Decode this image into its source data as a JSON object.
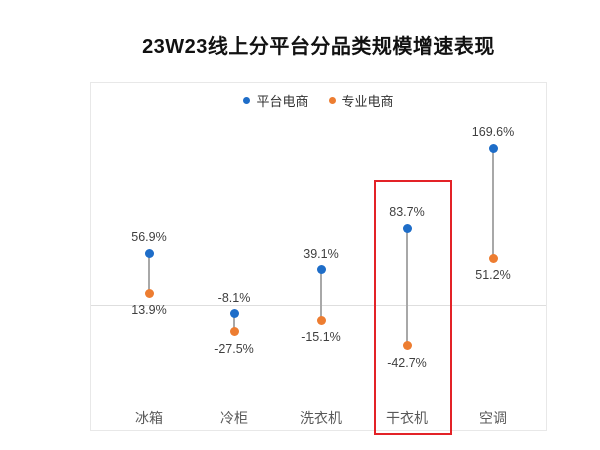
{
  "title": "23W23线上分平台分品类规模增速表现",
  "legend": {
    "items": [
      {
        "label": "平台电商",
        "color": "#1e6dc8"
      },
      {
        "label": "专业电商",
        "color": "#ed7d31"
      }
    ]
  },
  "chart_data": {
    "type": "scatter",
    "subtype": "dumbbell-dot-plot",
    "title": "23W23线上分平台分品类规模增速表现",
    "categories": [
      "冰箱",
      "冷柜",
      "洗衣机",
      "干衣机",
      "空调"
    ],
    "series": [
      {
        "name": "平台电商",
        "color": "#1e6dc8",
        "values": [
          56.9,
          -8.1,
          39.1,
          83.7,
          169.6
        ],
        "labels": [
          "56.9%",
          "-8.1%",
          "39.1%",
          "83.7%",
          "169.6%"
        ]
      },
      {
        "name": "专业电商",
        "color": "#ed7d31",
        "values": [
          13.9,
          -27.5,
          -15.1,
          -42.7,
          51.2
        ],
        "labels": [
          "13.9%",
          "-27.5%",
          "-15.1%",
          "-42.7%",
          "51.2%"
        ]
      }
    ],
    "unit": "%",
    "ylim": [
      -150,
      240
    ],
    "grid": "zero-baseline-only",
    "legend_position": "top-center",
    "highlighted_category": "干衣机"
  },
  "annotation": {
    "highlight_color": "#e32227",
    "highlighted_category": "干衣机"
  }
}
